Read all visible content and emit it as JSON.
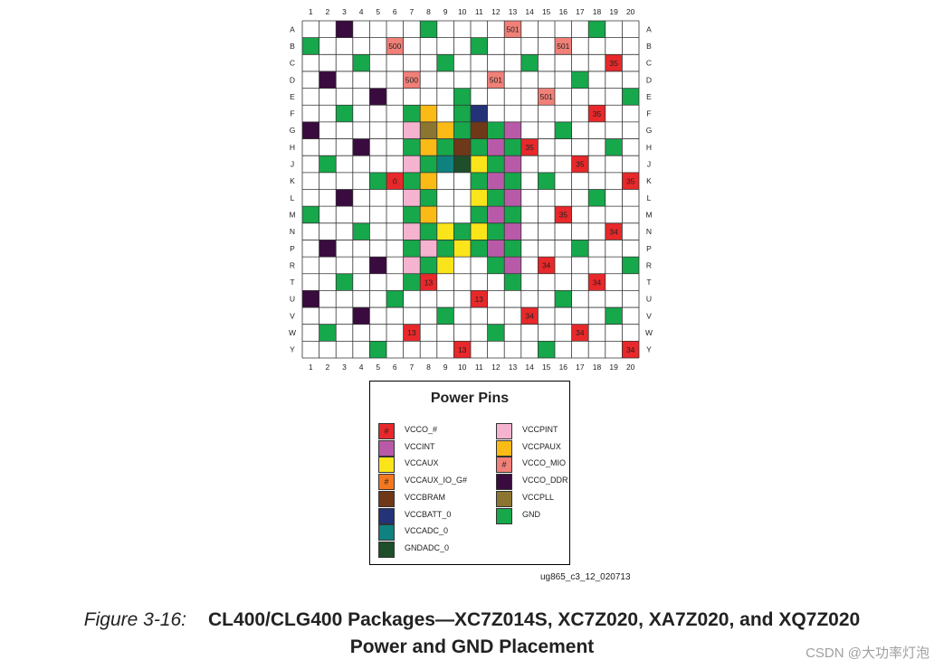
{
  "columns": [
    "1",
    "2",
    "3",
    "4",
    "5",
    "6",
    "7",
    "8",
    "9",
    "10",
    "11",
    "12",
    "13",
    "14",
    "15",
    "16",
    "17",
    "18",
    "19",
    "20"
  ],
  "rows": [
    "A",
    "B",
    "C",
    "D",
    "E",
    "F",
    "G",
    "H",
    "J",
    "K",
    "L",
    "M",
    "N",
    "P",
    "R",
    "T",
    "U",
    "V",
    "W",
    "Y"
  ],
  "colors": {
    "gnd": "#16a84b",
    "ddr": "#3a0b3f",
    "mio": "#f08078",
    "io": "#e8282a",
    "pint": "#f5b3cf",
    "paux": "#fbbb16",
    "pll": "#8b7530",
    "int": "#b85aa8",
    "aux": "#fae51a",
    "batt": "#243278",
    "bram": "#6f3818",
    "adc": "#0f8280",
    "gndadc": "#1e4e2a",
    "auxg": "#f47820"
  },
  "cells": [
    [
      "A3",
      "ddr"
    ],
    [
      "A8",
      "gnd"
    ],
    [
      "A13",
      "mio",
      "501"
    ],
    [
      "A18",
      "gnd"
    ],
    [
      "B1",
      "gnd"
    ],
    [
      "B6",
      "mio",
      "500"
    ],
    [
      "B11",
      "gnd"
    ],
    [
      "B16",
      "mio",
      "501"
    ],
    [
      "C4",
      "gnd"
    ],
    [
      "C9",
      "gnd"
    ],
    [
      "C14",
      "gnd"
    ],
    [
      "C19",
      "io",
      "35"
    ],
    [
      "D2",
      "ddr"
    ],
    [
      "D7",
      "mio",
      "500"
    ],
    [
      "D12",
      "mio",
      "501"
    ],
    [
      "D17",
      "gnd"
    ],
    [
      "E5",
      "ddr"
    ],
    [
      "E10",
      "gnd"
    ],
    [
      "E15",
      "mio",
      "501"
    ],
    [
      "E20",
      "gnd"
    ],
    [
      "F3",
      "gnd"
    ],
    [
      "F7",
      "gnd"
    ],
    [
      "F8",
      "paux"
    ],
    [
      "F10",
      "gnd"
    ],
    [
      "F11",
      "batt"
    ],
    [
      "F18",
      "io",
      "35"
    ],
    [
      "G1",
      "ddr"
    ],
    [
      "G7",
      "pint"
    ],
    [
      "G8",
      "pll"
    ],
    [
      "G9",
      "paux"
    ],
    [
      "G10",
      "gnd"
    ],
    [
      "G11",
      "bram"
    ],
    [
      "G12",
      "gnd"
    ],
    [
      "G13",
      "int"
    ],
    [
      "G16",
      "gnd"
    ],
    [
      "H4",
      "ddr"
    ],
    [
      "H7",
      "gnd"
    ],
    [
      "H8",
      "paux"
    ],
    [
      "H9",
      "gnd"
    ],
    [
      "H10",
      "bram"
    ],
    [
      "H11",
      "gnd"
    ],
    [
      "H12",
      "int"
    ],
    [
      "H13",
      "gnd"
    ],
    [
      "H14",
      "io",
      "35"
    ],
    [
      "H19",
      "gnd"
    ],
    [
      "J2",
      "gnd"
    ],
    [
      "J7",
      "pint"
    ],
    [
      "J8",
      "gnd"
    ],
    [
      "J9",
      "adc"
    ],
    [
      "J10",
      "gndadc"
    ],
    [
      "J11",
      "aux"
    ],
    [
      "J12",
      "gnd"
    ],
    [
      "J13",
      "int"
    ],
    [
      "J17",
      "io",
      "35"
    ],
    [
      "K5",
      "gnd"
    ],
    [
      "K6",
      "io",
      "0"
    ],
    [
      "K7",
      "gnd"
    ],
    [
      "K8",
      "paux"
    ],
    [
      "K11",
      "gnd"
    ],
    [
      "K12",
      "int"
    ],
    [
      "K13",
      "gnd"
    ],
    [
      "K15",
      "gnd"
    ],
    [
      "K20",
      "io",
      "35"
    ],
    [
      "L3",
      "ddr"
    ],
    [
      "L7",
      "pint"
    ],
    [
      "L8",
      "gnd"
    ],
    [
      "L11",
      "aux"
    ],
    [
      "L12",
      "gnd"
    ],
    [
      "L13",
      "int"
    ],
    [
      "L18",
      "gnd"
    ],
    [
      "M1",
      "gnd"
    ],
    [
      "M7",
      "gnd"
    ],
    [
      "M8",
      "paux"
    ],
    [
      "M11",
      "gnd"
    ],
    [
      "M12",
      "int"
    ],
    [
      "M13",
      "gnd"
    ],
    [
      "M16",
      "io",
      "35"
    ],
    [
      "N4",
      "gnd"
    ],
    [
      "N7",
      "pint"
    ],
    [
      "N8",
      "gnd"
    ],
    [
      "N9",
      "aux"
    ],
    [
      "N10",
      "gnd"
    ],
    [
      "N11",
      "aux"
    ],
    [
      "N12",
      "gnd"
    ],
    [
      "N13",
      "int"
    ],
    [
      "N19",
      "io",
      "34"
    ],
    [
      "P2",
      "ddr"
    ],
    [
      "P7",
      "gnd"
    ],
    [
      "P8",
      "pint"
    ],
    [
      "P9",
      "gnd"
    ],
    [
      "P10",
      "aux"
    ],
    [
      "P11",
      "gnd"
    ],
    [
      "P12",
      "int"
    ],
    [
      "P13",
      "gnd"
    ],
    [
      "P17",
      "gnd"
    ],
    [
      "R5",
      "ddr"
    ],
    [
      "R7",
      "pint"
    ],
    [
      "R8",
      "gnd"
    ],
    [
      "R9",
      "aux"
    ],
    [
      "R12",
      "gnd"
    ],
    [
      "R13",
      "int"
    ],
    [
      "R15",
      "io",
      "34"
    ],
    [
      "R20",
      "gnd"
    ],
    [
      "T3",
      "gnd"
    ],
    [
      "T7",
      "gnd"
    ],
    [
      "T8",
      "io",
      "13"
    ],
    [
      "T13",
      "gnd"
    ],
    [
      "T18",
      "io",
      "34"
    ],
    [
      "U1",
      "ddr"
    ],
    [
      "U6",
      "gnd"
    ],
    [
      "U11",
      "io",
      "13"
    ],
    [
      "U16",
      "gnd"
    ],
    [
      "V4",
      "ddr"
    ],
    [
      "V9",
      "gnd"
    ],
    [
      "V14",
      "io",
      "34"
    ],
    [
      "V19",
      "gnd"
    ],
    [
      "W2",
      "gnd"
    ],
    [
      "W7",
      "io",
      "13"
    ],
    [
      "W12",
      "gnd"
    ],
    [
      "W17",
      "io",
      "34"
    ],
    [
      "Y5",
      "gnd"
    ],
    [
      "Y10",
      "io",
      "13"
    ],
    [
      "Y15",
      "gnd"
    ],
    [
      "Y20",
      "io",
      "34"
    ]
  ],
  "legend": {
    "title": "Power Pins",
    "left": [
      {
        "key": "io",
        "label": "VCCO_#",
        "mark": "#"
      },
      {
        "key": "int",
        "label": "VCCINT"
      },
      {
        "key": "aux",
        "label": "VCCAUX"
      },
      {
        "key": "auxg",
        "label": "VCCAUX_IO_G#",
        "mark": "#"
      },
      {
        "key": "bram",
        "label": "VCCBRAM"
      },
      {
        "key": "batt",
        "label": "VCCBATT_0"
      },
      {
        "key": "adc",
        "label": "VCCADC_0"
      },
      {
        "key": "gndadc",
        "label": "GNDADC_0"
      }
    ],
    "right": [
      {
        "key": "pint",
        "label": "VCCPINT"
      },
      {
        "key": "paux",
        "label": "VCCPAUX"
      },
      {
        "key": "mio",
        "label": "VCCO_MIO",
        "mark": "#"
      },
      {
        "key": "ddr",
        "label": "VCCO_DDR"
      },
      {
        "key": "pll",
        "label": "VCCPLL"
      },
      {
        "key": "gnd",
        "label": "GND"
      }
    ]
  },
  "doc_id": "ug865_c3_12_020713",
  "caption": {
    "number": "Figure 3-16:",
    "line1": "CL400/CLG400 Packages—XC7Z014S, XC7Z020, XA7Z020, and XQ7Z020",
    "line2": "Power and GND Placement"
  },
  "watermark": "CSDN @大功率灯泡"
}
